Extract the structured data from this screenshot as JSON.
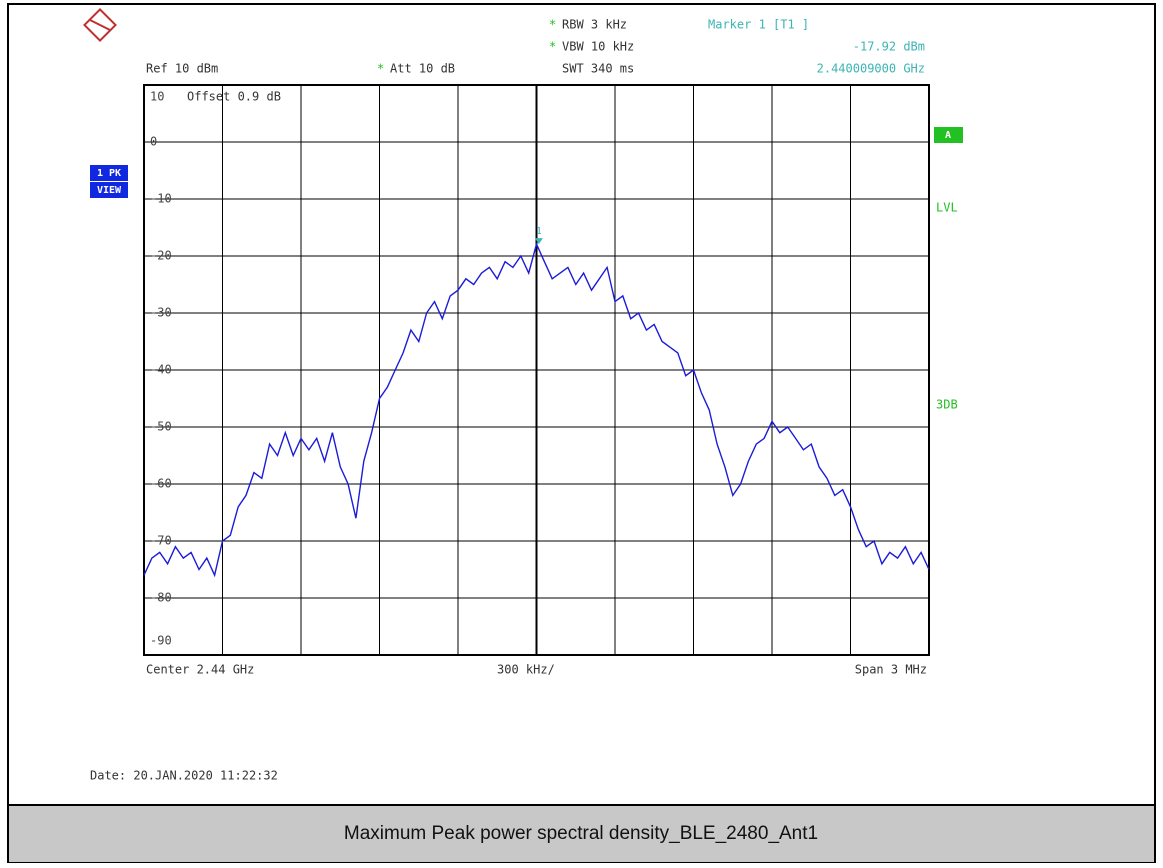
{
  "chart_data": {
    "type": "line",
    "title": "Maximum Peak power spectral density_BLE_2480_Ant1",
    "annotations": [
      "*",
      "RBW 3 kHz",
      "*",
      "VBW 10 kHz",
      "Ref 10 dBm",
      "*",
      "Att 10 dB",
      "SWT 340 ms",
      "Offset 0.9 dB",
      "1 PK",
      "VIEW",
      "A",
      "LVL",
      "3DB",
      "Center 2.44 GHz",
      "300 kHz/",
      "Span 3 MHz",
      "Date: 20.JAN.2020 11:22:32"
    ],
    "marker": {
      "name": "Marker 1 [T1 ]",
      "label": "1",
      "x": 2.440009,
      "value": -17.92,
      "value_label": "-17.92 dBm",
      "x_label": "2.440009000 GHz",
      "color": "#3cb4b4"
    },
    "x": [
      2.4385,
      2.43853,
      2.43856,
      2.43859,
      2.43862,
      2.43865,
      2.43868,
      2.43871,
      2.43874,
      2.43877,
      2.4388,
      2.43883,
      2.43886,
      2.43889,
      2.43892,
      2.43895,
      2.43898,
      2.43901,
      2.43904,
      2.43907,
      2.4391,
      2.43913,
      2.43916,
      2.43919,
      2.43922,
      2.43925,
      2.43928,
      2.43931,
      2.43934,
      2.43937,
      2.4394,
      2.43943,
      2.43946,
      2.43949,
      2.43952,
      2.43955,
      2.43958,
      2.43961,
      2.43964,
      2.43967,
      2.4397,
      2.43973,
      2.43976,
      2.43979,
      2.43982,
      2.43985,
      2.43988,
      2.43991,
      2.43994,
      2.43997,
      2.44,
      2.44003,
      2.44006,
      2.44009,
      2.44012,
      2.44015,
      2.44018,
      2.44021,
      2.44024,
      2.44027,
      2.4403,
      2.44033,
      2.44036,
      2.44039,
      2.44042,
      2.44045,
      2.44048,
      2.44051,
      2.44054,
      2.44057,
      2.4406,
      2.44063,
      2.44066,
      2.44069,
      2.44072,
      2.44075,
      2.44078,
      2.44081,
      2.44084,
      2.44087,
      2.4409,
      2.44093,
      2.44096,
      2.44099,
      2.44102,
      2.44105,
      2.44108,
      2.44111,
      2.44114,
      2.44117,
      2.4412,
      2.44123,
      2.44126,
      2.44129,
      2.44132,
      2.44135,
      2.44138,
      2.44141,
      2.44144,
      2.44147,
      2.4415
    ],
    "series": [
      {
        "name": "1 PK",
        "color": "#1c1cd8",
        "values": [
          -76,
          -73,
          -72,
          -74,
          -71,
          -73,
          -72,
          -75,
          -73,
          -76,
          -70,
          -69,
          -64,
          -62,
          -58,
          -59,
          -53,
          -55,
          -51,
          -55,
          -52,
          -54,
          -52,
          -56,
          -51,
          -57,
          -60,
          -66,
          -56,
          -51,
          -45,
          -43,
          -40,
          -37,
          -33,
          -35,
          -30,
          -28,
          -31,
          -27,
          -26,
          -24,
          -25,
          -23,
          -22,
          -24,
          -21,
          -22,
          -20,
          -23,
          -17.92,
          -21,
          -24,
          -23,
          -22,
          -25,
          -23,
          -26,
          -24,
          -22,
          -28,
          -27,
          -31,
          -30,
          -33,
          -32,
          -35,
          -36,
          -37,
          -41,
          -40,
          -44,
          -47,
          -53,
          -57,
          -62,
          -60,
          -56,
          -53,
          -52,
          -49,
          -51,
          -50,
          -52,
          -54,
          -53,
          -57,
          -59,
          -62,
          -61,
          -64,
          -68,
          -71,
          -70,
          -74,
          -72,
          -73,
          -71,
          -74,
          -72,
          -75
        ]
      }
    ],
    "xlim": [
      2.4385,
      2.4415
    ],
    "ylim": [
      -90,
      10
    ],
    "yticks": [
      10,
      0,
      -10,
      -20,
      -30,
      -40,
      -50,
      -60,
      -70,
      -80,
      -90
    ],
    "grid": true
  }
}
